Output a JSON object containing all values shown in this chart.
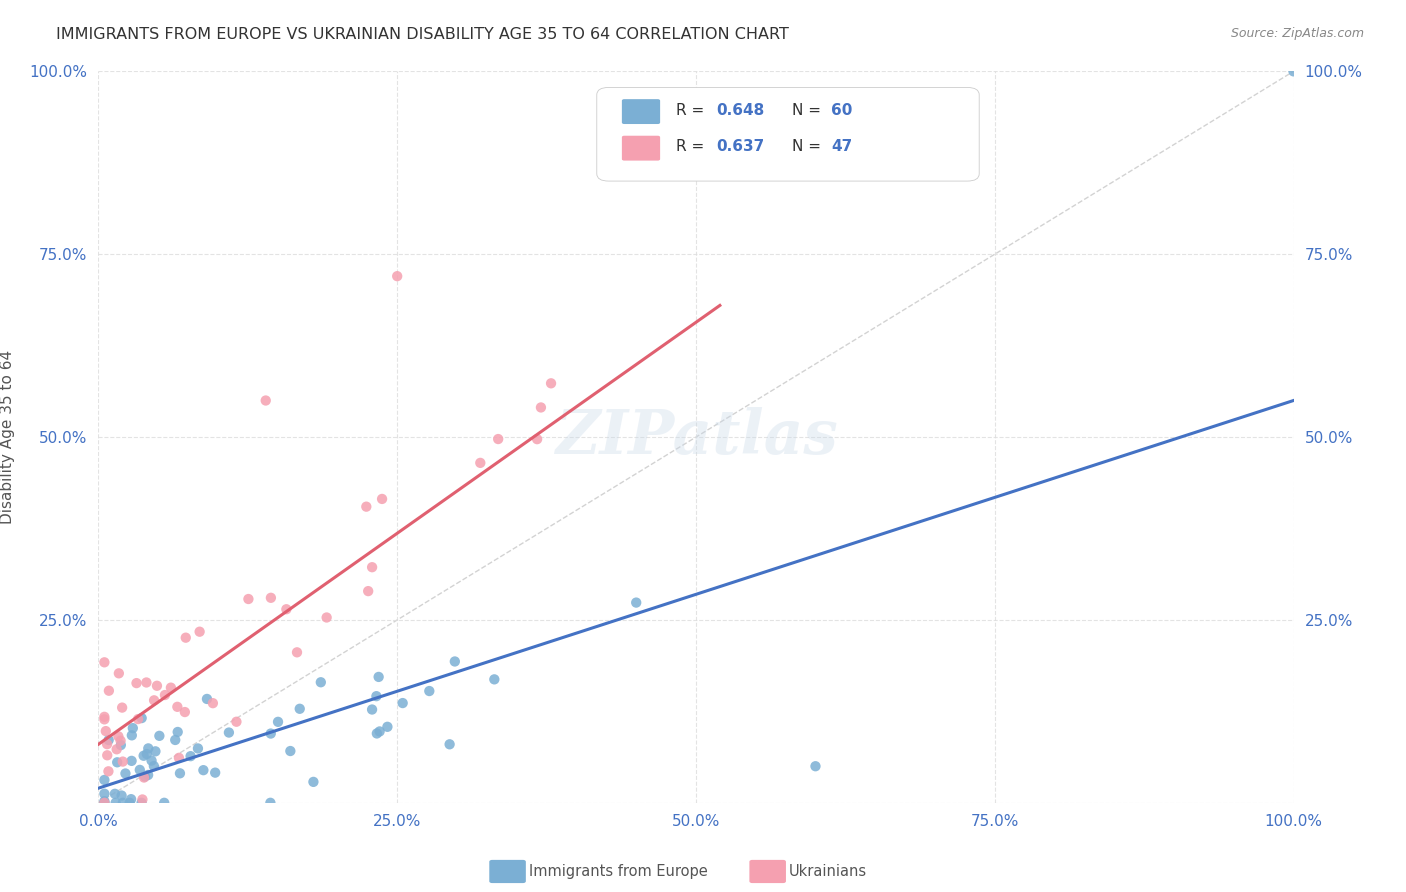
{
  "title": "IMMIGRANTS FROM EUROPE VS UKRAINIAN DISABILITY AGE 35 TO 64 CORRELATION CHART",
  "source": "Source: ZipAtlas.com",
  "ylabel": "Disability Age 35 to 64",
  "xlim": [
    0,
    1.0
  ],
  "ylim": [
    0,
    1.0
  ],
  "xtick_labels": [
    "0.0%",
    "25.0%",
    "50.0%",
    "75.0%",
    "100.0%"
  ],
  "xtick_vals": [
    0.0,
    0.25,
    0.5,
    0.75,
    1.0
  ],
  "ytick_vals": [
    0.0,
    0.25,
    0.5,
    0.75,
    1.0
  ],
  "legend_r1": "0.648",
  "legend_n1": "60",
  "legend_r2": "0.637",
  "legend_n2": "47",
  "legend_label1": "Immigrants from Europe",
  "legend_label2": "Ukrainians",
  "blue_color": "#7BAFD4",
  "pink_color": "#F5A0B0",
  "blue_line_color": "#4472C4",
  "pink_line_color": "#E06070",
  "diag_color": "#C0C0C0",
  "title_color": "#333333",
  "source_color": "#888888",
  "axis_label_color": "#555555",
  "tick_color": "#4472C4",
  "blue_line_x": [
    0.0,
    1.0
  ],
  "blue_line_y": [
    0.02,
    0.55
  ],
  "pink_line_x": [
    0.0,
    0.52
  ],
  "pink_line_y": [
    0.08,
    0.68
  ],
  "watermark": "ZIPatlas",
  "grid_color": "#DDDDDD"
}
